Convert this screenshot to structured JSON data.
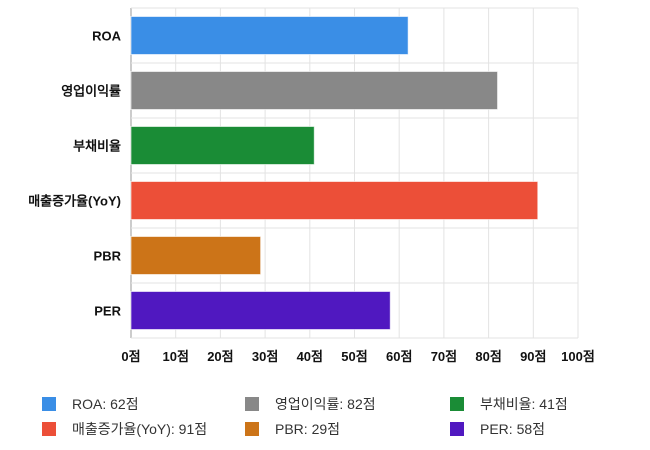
{
  "chart_data": {
    "type": "bar",
    "orientation": "horizontal",
    "categories": [
      "ROA",
      "영업이익률",
      "부채비율",
      "매출증가율(YoY)",
      "PBR",
      "PER"
    ],
    "values": [
      62,
      82,
      41,
      91,
      29,
      58
    ],
    "colors": [
      "#3a8ee6",
      "#888888",
      "#1a8c36",
      "#ec4f38",
      "#cc7418",
      "#5018c0"
    ],
    "xlim": [
      0,
      100
    ],
    "xticks": [
      "0점",
      "10점",
      "20점",
      "30점",
      "40점",
      "50점",
      "60점",
      "70점",
      "80점",
      "90점",
      "100점"
    ],
    "grid": true,
    "legend": [
      "ROA: 62점",
      "영업이익률: 82점",
      "부채비율: 41점",
      "매출증가율(YoY): 91점",
      "PBR: 29점",
      "PER: 58점"
    ],
    "legend_placement": "bottom"
  }
}
